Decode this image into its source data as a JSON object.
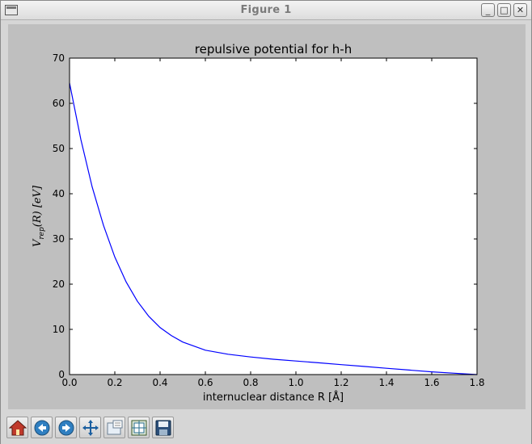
{
  "window": {
    "title": "Figure 1",
    "buttons": {
      "minimize": "_",
      "maximize": "□",
      "close": "✕"
    }
  },
  "toolbar": {
    "items": [
      {
        "name": "home-button",
        "icon": "home-icon",
        "tooltip": "Reset original view"
      },
      {
        "name": "back-button",
        "icon": "back-arrow-icon",
        "tooltip": "Back to previous view"
      },
      {
        "name": "forward-button",
        "icon": "forward-arrow-icon",
        "tooltip": "Forward to next view"
      },
      {
        "name": "pan-button",
        "icon": "pan-arrows-icon",
        "tooltip": "Pan axes"
      },
      {
        "name": "zoom-button",
        "icon": "zoom-rect-icon",
        "tooltip": "Zoom to rectangle"
      },
      {
        "name": "subplots-button",
        "icon": "subplots-icon",
        "tooltip": "Configure subplots"
      },
      {
        "name": "save-button",
        "icon": "floppy-disk-icon",
        "tooltip": "Save the figure"
      }
    ]
  },
  "colors": {
    "line": "#0000ff",
    "canvas": "#bfbfbf",
    "axes_bg": "#ffffff"
  },
  "chart_data": {
    "type": "line",
    "title": "repulsive potential for h-h",
    "xlabel": "internuclear distance R [Å]",
    "ylabel": "V_rep(R) [eV]",
    "ylabel_parts": {
      "main": "V",
      "sub": "rep",
      "rest": "(R) [eV]"
    },
    "xlim": [
      0.0,
      1.8
    ],
    "ylim": [
      0,
      70
    ],
    "xticks": [
      "0.0",
      "0.2",
      "0.4",
      "0.6",
      "0.8",
      "1.0",
      "1.2",
      "1.4",
      "1.6",
      "1.8"
    ],
    "yticks": [
      "0",
      "10",
      "20",
      "30",
      "40",
      "50",
      "60",
      "70"
    ],
    "series": [
      {
        "name": "V_rep",
        "x": [
          0.0,
          0.05,
          0.1,
          0.15,
          0.2,
          0.25,
          0.3,
          0.35,
          0.4,
          0.45,
          0.5,
          0.6,
          0.7,
          0.8,
          0.9,
          1.0,
          1.1,
          1.2,
          1.3,
          1.4,
          1.5,
          1.6,
          1.7,
          1.8
        ],
        "y": [
          64.5,
          52.0,
          41.5,
          33.0,
          26.0,
          20.5,
          16.2,
          12.9,
          10.4,
          8.6,
          7.2,
          5.4,
          4.5,
          3.9,
          3.4,
          3.0,
          2.6,
          2.2,
          1.8,
          1.4,
          1.0,
          0.6,
          0.3,
          0.0
        ]
      }
    ]
  }
}
